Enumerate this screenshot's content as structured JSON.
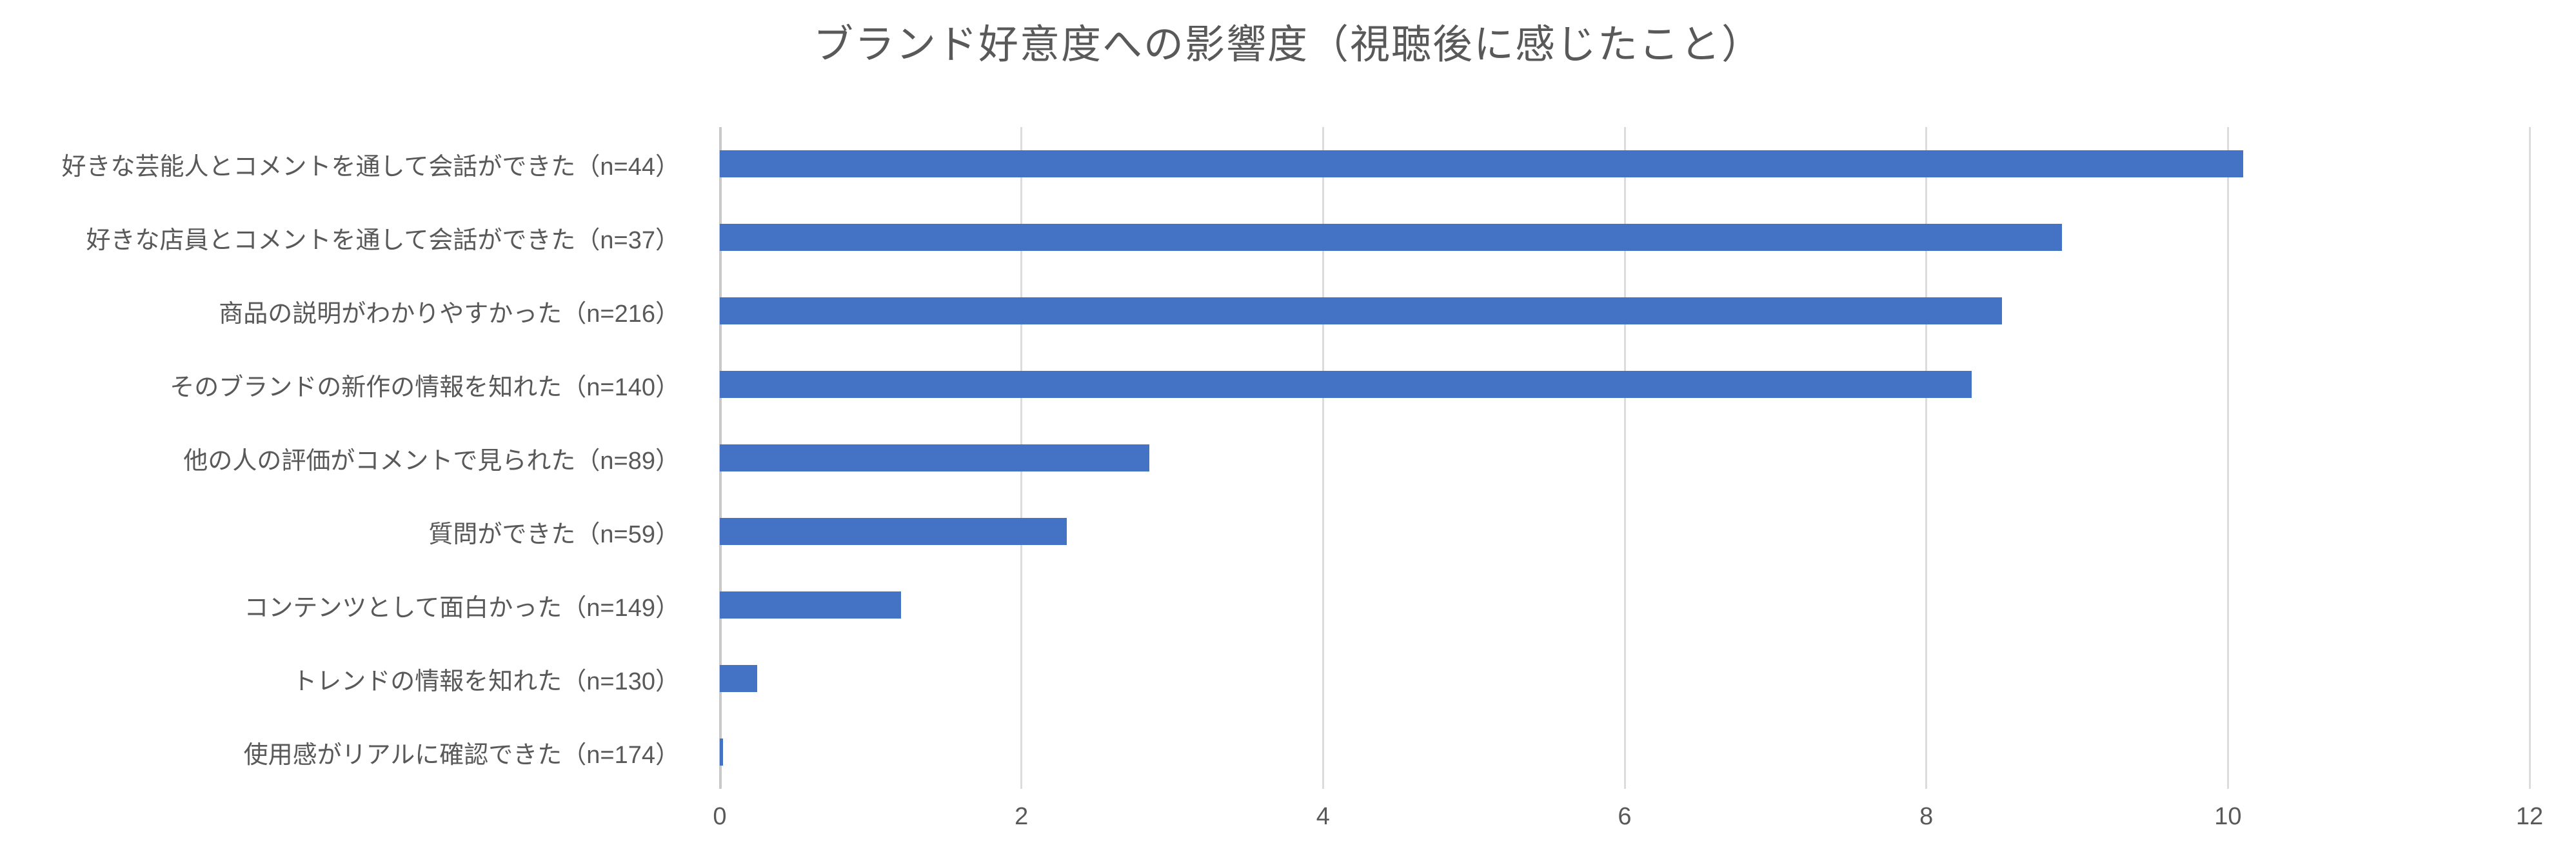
{
  "title": "ブランド好意度への影響度（視聴後に感じたこと）",
  "colors": {
    "bar": "#4472C4",
    "gridline": "#DCDCDC",
    "axis_line": "#C9C9C9",
    "text": "#595959",
    "background": "#FFFFFF"
  },
  "chart_data": {
    "type": "bar",
    "orientation": "horizontal",
    "title": "ブランド好意度への影響度（視聴後に感じたこと）",
    "categories": [
      "好きな芸能人とコメントを通して会話ができた（n=44）",
      "好きな店員とコメントを通して会話ができた（n=37）",
      "商品の説明がわかりやすかった（n=216）",
      "そのブランドの新作の情報を知れた（n=140）",
      "他の人の評価がコメントで見られた（n=89）",
      "質問ができた（n=59）",
      "コンテンツとして面白かった（n=149）",
      "トレンドの情報を知れた（n=130）",
      "使用感がリアルに確認できた（n=174）"
    ],
    "values": [
      10.1,
      8.9,
      8.5,
      8.3,
      2.85,
      2.3,
      1.2,
      0.25,
      0.02
    ],
    "xlabel": "",
    "ylabel": "",
    "xlim": [
      0,
      12
    ],
    "x_ticks": [
      0,
      2,
      4,
      6,
      8,
      10,
      12
    ],
    "grid": "vertical",
    "legend": "none"
  }
}
